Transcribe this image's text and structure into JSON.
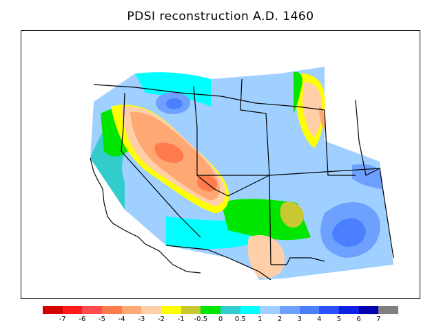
{
  "title": "PDSI reconstruction A.D. 1460",
  "legend": {
    "colors": [
      "#d40000",
      "#ff1a1a",
      "#ff4d4d",
      "#ff7a4d",
      "#ffa874",
      "#ffd0a8",
      "#ffff00",
      "#c8c832",
      "#00e600",
      "#32cccc",
      "#00ffff",
      "#a0d0ff",
      "#6ea0ff",
      "#4a80ff",
      "#2a50ff",
      "#1020e0",
      "#0000b0",
      "#808080"
    ],
    "labels": [
      "-7",
      "-6",
      "-5",
      "-4",
      "-3",
      "-2",
      "-1",
      "-0.5",
      "0",
      "0.5",
      "1",
      "2",
      "3",
      "4",
      "5",
      "6",
      "7"
    ]
  },
  "colors": {
    "background_field": "#a0d0ff",
    "wet": "#6ea0ff",
    "dry": "#ffa874",
    "very_dry": "#ff7a4d"
  }
}
